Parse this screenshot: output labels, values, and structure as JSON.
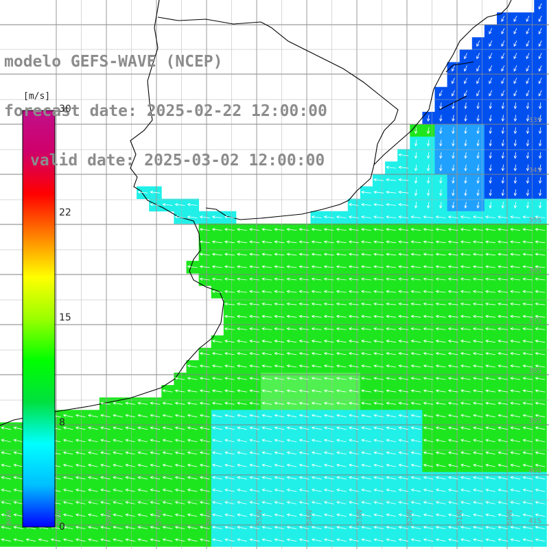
{
  "title": {
    "line1": "modelo GEFS-WAVE (NCEP)",
    "line2": "forecast date: 2025-02-22 12:00:00",
    "line3": "valid date: 2025-03-02 12:00:00"
  },
  "colorbar": {
    "unit": "[m/s]",
    "min": 0,
    "max": 30,
    "ticks": [
      "30",
      "22",
      "15",
      "8",
      "0"
    ],
    "colors": [
      "#0000ff",
      "#00bfff",
      "#00ffff",
      "#00e040",
      "#00ff00",
      "#9aff00",
      "#ffff00",
      "#ff8000",
      "#ff0000",
      "#d0006a",
      "#c0108a"
    ]
  },
  "lat_labels": [
    "33S",
    "34S",
    "35S",
    "36S",
    "37S",
    "38S",
    "39S",
    "40S",
    "41S"
  ],
  "lon_labels": [
    "60W",
    "59W",
    "58W",
    "57W",
    "56W",
    "55W",
    "54W",
    "53W",
    "52W",
    "51W",
    "50W"
  ],
  "field_colors": {
    "green": "#1ee61e",
    "light_green": "#50f050",
    "cyan": "#20f0e8",
    "light_blue": "#20a0ff",
    "blue": "#0050f0",
    "land": "#ffffff",
    "grid": "#808080",
    "coast": "#000000",
    "arrow": "#ffffff"
  }
}
